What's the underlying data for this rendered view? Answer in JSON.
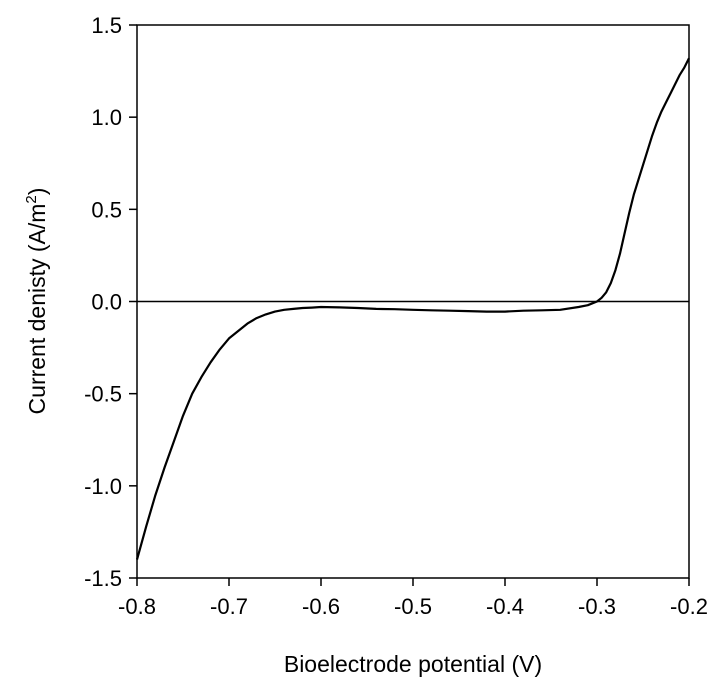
{
  "chart_data": {
    "type": "line",
    "title": "",
    "xlabel": "Bioelectrode potential (V)",
    "ylabel": "Current denisty (A/m",
    "ylabel_sup": "2",
    "ylabel_tail": ")",
    "xlim": [
      -0.8,
      -0.2
    ],
    "ylim": [
      -1.5,
      1.5
    ],
    "xticks": [
      -0.8,
      -0.7,
      -0.6,
      -0.5,
      -0.4,
      -0.3,
      -0.2
    ],
    "xtick_labels": [
      "-0.8",
      "-0.7",
      "-0.6",
      "-0.5",
      "-0.4",
      "-0.3",
      "-0.2"
    ],
    "yticks": [
      -1.5,
      -1.0,
      -0.5,
      0.0,
      0.5,
      1.0,
      1.5
    ],
    "ytick_labels": [
      "-1.5",
      "-1.0",
      "-0.5",
      "0.0",
      "0.5",
      "1.0",
      "1.5"
    ],
    "zero_line": true,
    "grid": false,
    "legend": "none",
    "line_color": "#000000",
    "series": [
      {
        "x": [
          -0.8,
          -0.79,
          -0.78,
          -0.77,
          -0.76,
          -0.75,
          -0.74,
          -0.73,
          -0.72,
          -0.71,
          -0.7,
          -0.69,
          -0.68,
          -0.67,
          -0.66,
          -0.65,
          -0.64,
          -0.63,
          -0.62,
          -0.61,
          -0.6,
          -0.58,
          -0.56,
          -0.54,
          -0.52,
          -0.5,
          -0.48,
          -0.46,
          -0.44,
          -0.42,
          -0.4,
          -0.38,
          -0.36,
          -0.34,
          -0.32,
          -0.31,
          -0.3,
          -0.295,
          -0.29,
          -0.285,
          -0.28,
          -0.275,
          -0.27,
          -0.265,
          -0.26,
          -0.255,
          -0.25,
          -0.245,
          -0.24,
          -0.235,
          -0.23,
          -0.225,
          -0.22,
          -0.215,
          -0.21,
          -0.205,
          -0.2
        ],
        "y": [
          -1.4,
          -1.22,
          -1.05,
          -0.9,
          -0.76,
          -0.62,
          -0.5,
          -0.41,
          -0.33,
          -0.26,
          -0.2,
          -0.16,
          -0.12,
          -0.09,
          -0.07,
          -0.055,
          -0.045,
          -0.04,
          -0.035,
          -0.033,
          -0.03,
          -0.032,
          -0.035,
          -0.04,
          -0.042,
          -0.045,
          -0.048,
          -0.05,
          -0.052,
          -0.055,
          -0.055,
          -0.05,
          -0.048,
          -0.045,
          -0.03,
          -0.02,
          0.0,
          0.02,
          0.05,
          0.1,
          0.17,
          0.26,
          0.37,
          0.48,
          0.58,
          0.66,
          0.74,
          0.82,
          0.9,
          0.97,
          1.03,
          1.08,
          1.13,
          1.18,
          1.23,
          1.27,
          1.32
        ]
      }
    ]
  }
}
